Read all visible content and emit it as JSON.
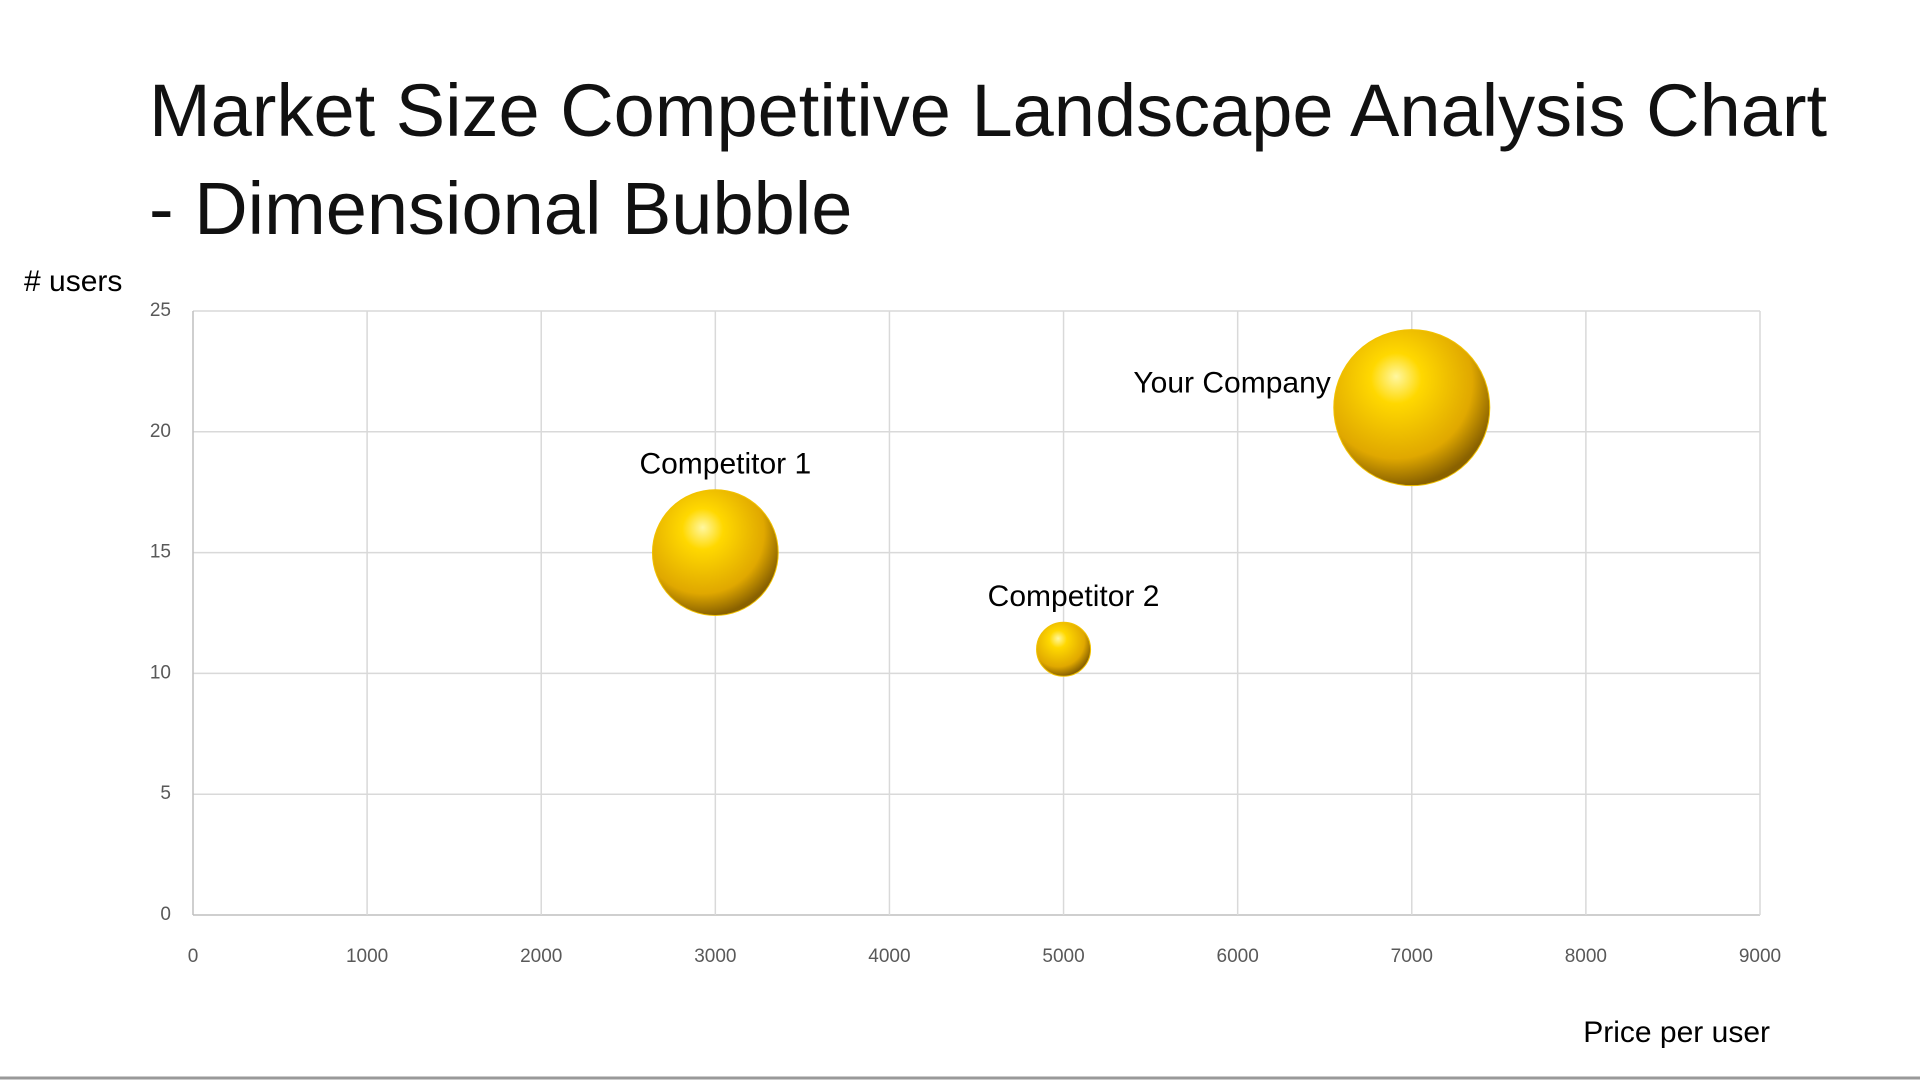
{
  "chart_data": {
    "type": "bubble",
    "title": "Market Size Competitive Landscape Analysis Chart - Dimensional Bubble",
    "y_label": "# users",
    "x_label": "Price per user",
    "xlim": [
      0,
      9000
    ],
    "xticks": [
      0,
      1000,
      2000,
      3000,
      4000,
      5000,
      6000,
      7000,
      8000,
      9000
    ],
    "ylim": [
      0,
      25
    ],
    "yticks": [
      0,
      5,
      10,
      15,
      20,
      25
    ],
    "grid": true,
    "color": "#f2c200",
    "series": [
      {
        "name": "Competitor 1",
        "x": 3000,
        "y": 15,
        "size": 65
      },
      {
        "name": "Competitor 2",
        "x": 5000,
        "y": 11,
        "size": 12
      },
      {
        "name": "Your Company",
        "x": 7000,
        "y": 21,
        "size": 100
      }
    ]
  }
}
